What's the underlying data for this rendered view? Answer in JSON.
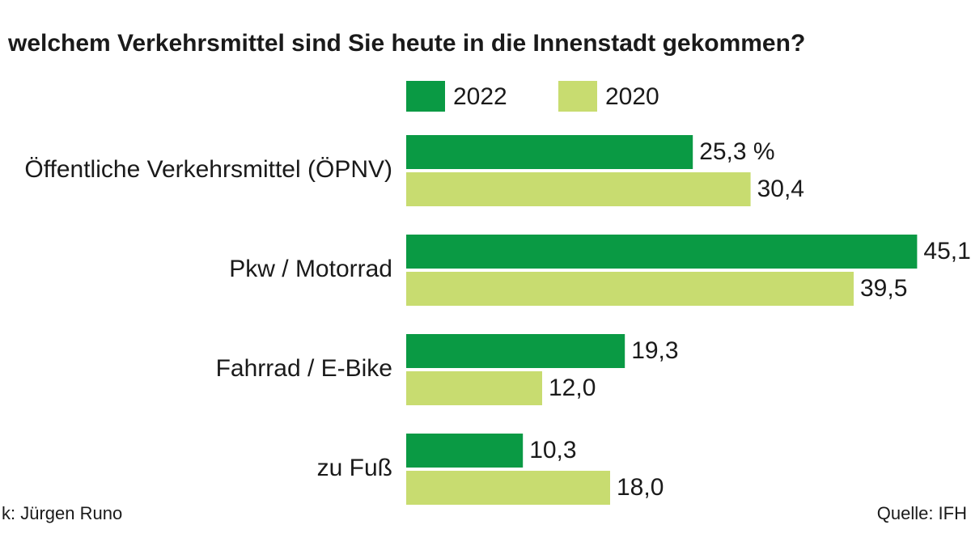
{
  "chart_data": {
    "type": "hbar",
    "title": "welchem Verkehrsmittel sind Sie heute in die Innenstadt gekommen?",
    "categories": [
      "Öffentliche Verkehrsmittel (ÖPNV)",
      "Pkw / Motorrad",
      "Fahrrad / E-Bike",
      "zu Fuß"
    ],
    "series": [
      {
        "name": "2022",
        "color": "#0a9a44",
        "values": [
          25.3,
          45.1,
          19.3,
          10.3
        ],
        "value_labels": [
          "25,3 %",
          "45,1",
          "19,3",
          "10,3"
        ]
      },
      {
        "name": "2020",
        "color": "#c8dc70",
        "values": [
          30.4,
          39.5,
          12.0,
          18.0
        ],
        "value_labels": [
          "30,4",
          "39,5",
          "12,0",
          "18,0"
        ]
      }
    ],
    "credit": "k: Jürgen Runo",
    "source": "Quelle: IFH"
  }
}
